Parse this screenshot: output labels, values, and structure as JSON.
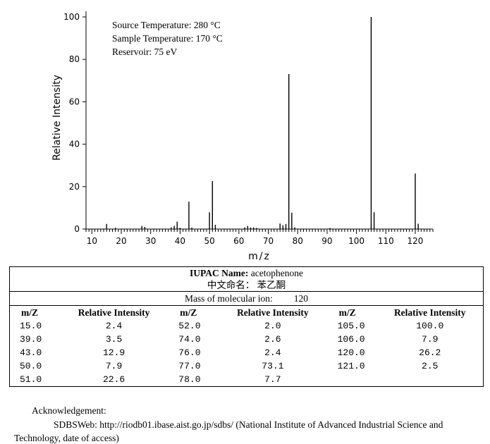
{
  "chart_data": {
    "type": "bar",
    "xlabel": "m/z",
    "ylabel": "Relative Intensity",
    "xlim": [
      8,
      126
    ],
    "ylim": [
      0,
      100
    ],
    "xticks": [
      10,
      20,
      30,
      40,
      50,
      60,
      70,
      80,
      90,
      100,
      110,
      120
    ],
    "yticks": [
      0,
      20,
      40,
      60,
      80,
      100
    ],
    "x": [
      15,
      18,
      27,
      28,
      37,
      38,
      39,
      40,
      43,
      44,
      50,
      51,
      52,
      62,
      63,
      64,
      65,
      66,
      74,
      75,
      76,
      77,
      78,
      79,
      91,
      105,
      106,
      120,
      121
    ],
    "values": [
      2.4,
      0.6,
      1.5,
      1.0,
      0.8,
      1.5,
      3.5,
      0.6,
      12.9,
      0.7,
      7.9,
      22.6,
      2.0,
      0.8,
      1.5,
      0.7,
      0.8,
      0.5,
      2.6,
      1.8,
      2.4,
      73.1,
      7.7,
      0.8,
      0.5,
      100.0,
      7.9,
      26.2,
      2.5
    ]
  },
  "conditions": {
    "source_temp": "Source Temperature: 280 °C",
    "sample_temp": "Sample Temperature: 170 °C",
    "reservoir": "Reservoir: 75 eV"
  },
  "info": {
    "iupac_label": "IUPAC Name:",
    "iupac_value": " acetophenone",
    "chinese_name": "中文命名： 苯乙酮",
    "mass_label": "Mass of molecular ion:",
    "mass_value": "120"
  },
  "peak_table": {
    "headers": [
      "m/Z",
      "Relative Intensity",
      "m/Z",
      "Relative Intensity",
      "m/Z",
      "Relative Intensity"
    ],
    "rows": [
      [
        "15.0",
        "2.4",
        "52.0",
        "2.0",
        "105.0",
        "100.0"
      ],
      [
        "39.0",
        "3.5",
        "74.0",
        "2.6",
        "106.0",
        "7.9"
      ],
      [
        "43.0",
        "12.9",
        "76.0",
        "2.4",
        "120.0",
        "26.2"
      ],
      [
        "50.0",
        "7.9",
        "77.0",
        "73.1",
        "121.0",
        "2.5"
      ],
      [
        "51.0",
        "22.6",
        "78.0",
        "7.7",
        "",
        ""
      ]
    ]
  },
  "acknowledgement": {
    "title": "Acknowledgement:",
    "line1": "SDBSWeb: http://riodb01.ibase.aist.go.jp/sdbs/ (National Institute of Advanced Industrial Science and",
    "line2": "Technology, date of access)"
  }
}
